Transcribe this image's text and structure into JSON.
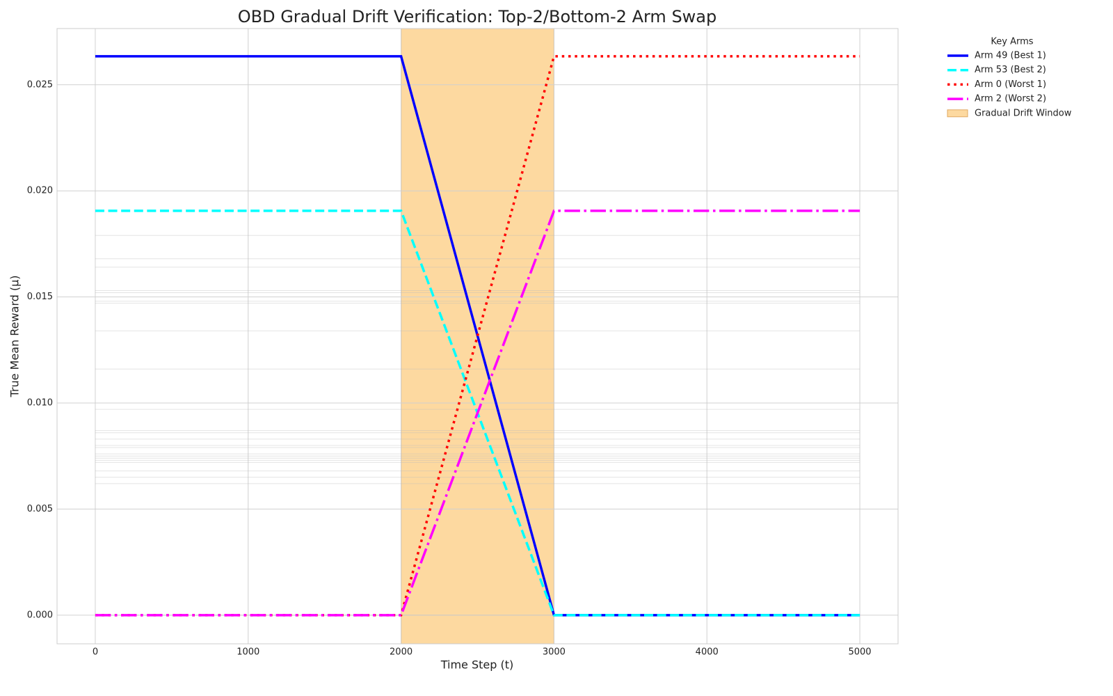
{
  "chart_data": {
    "type": "line",
    "title": "OBD Gradual Drift Verification: Top-2/Bottom-2 Arm Swap",
    "x_label": "Time Step (t)",
    "y_label": "True Mean Reward (μ)",
    "x": [
      0,
      2000,
      3000,
      5000
    ],
    "series": [
      {
        "name": "Arm 49 (Best 1)",
        "color": "#0000ff",
        "style": "solid",
        "values": [
          0.02634,
          0.02634,
          0,
          0
        ]
      },
      {
        "name": "Arm 53 (Best 2)",
        "color": "#00ffff",
        "style": "dashed",
        "values": [
          0.01906,
          0.01906,
          0,
          0
        ]
      },
      {
        "name": "Arm 0 (Worst 1)",
        "color": "#ff0000",
        "style": "dotted",
        "values": [
          0,
          0,
          0.02634,
          0.02634
        ]
      },
      {
        "name": "Arm 2 (Worst 2)",
        "color": "#ff00ff",
        "style": "dashdot",
        "values": [
          0,
          0,
          0.01906,
          0.01906
        ]
      }
    ],
    "other_levels": [
      0.0179,
      0.0168,
      0.0164,
      0.0153,
      0.0152,
      0.0148,
      0.0147,
      0.0134,
      0.0116,
      0.0097,
      0.0087,
      0.0086,
      0.0083,
      0.008,
      0.0079,
      0.0076,
      0.0075,
      0.0074,
      0.0073,
      0.0072,
      0.0068,
      0.0065,
      0.0062,
      0
    ],
    "other_color": "#bbbbbb",
    "shaded_region": {
      "x": [
        2000,
        3000
      ],
      "label": "Gradual Drift Window",
      "color": "#fdd9a0"
    },
    "legend_title": "Key Arms",
    "legend": "outside-upper-right",
    "grid": true,
    "xlim": [
      -250,
      5250
    ],
    "xticks": [
      0,
      1000,
      2000,
      3000,
      4000,
      5000
    ],
    "ylim": [
      -0.00135,
      0.02765
    ],
    "yticks": [
      {
        "value": 0,
        "label": "0.000"
      },
      0.005,
      {
        "value": 0.01,
        "label": "0.010"
      },
      0.015,
      {
        "value": 0.02,
        "label": "0.020"
      },
      0.025
    ]
  }
}
